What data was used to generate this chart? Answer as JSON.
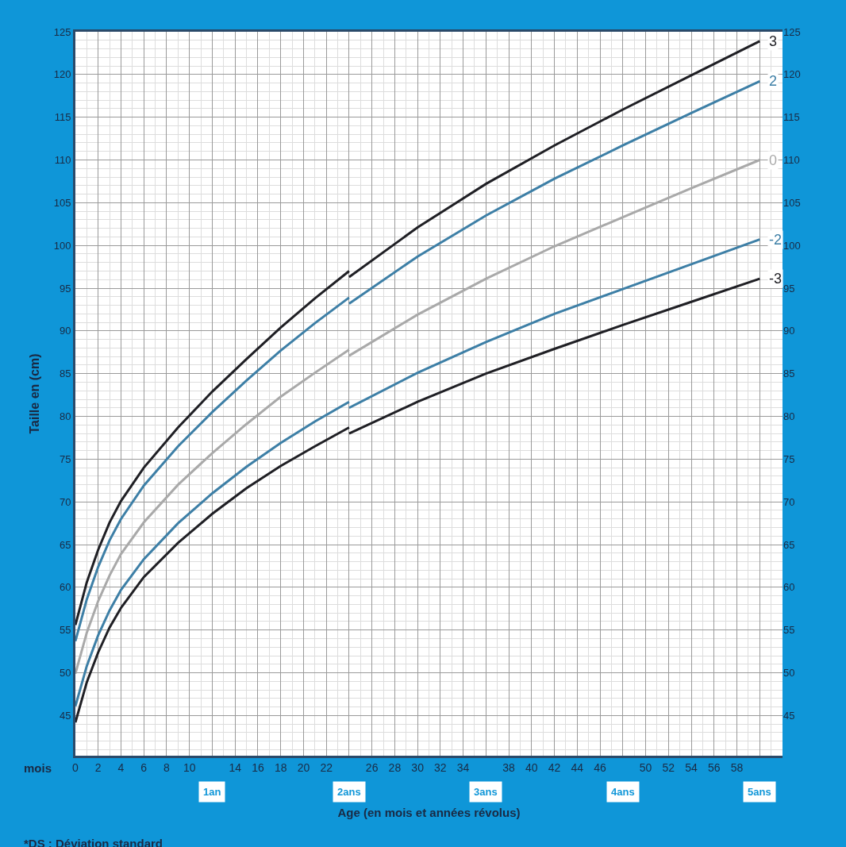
{
  "chart_data": {
    "type": "line",
    "xlabel": "Age (en mois et années révolus)",
    "ylabel": "Taille en (cm)",
    "annotations": [
      "mois",
      "*DS : Déviation standard",
      "1an",
      "2ans",
      "3ans",
      "4ans",
      "5ans"
    ],
    "x": [
      0,
      1,
      2,
      3,
      4,
      6,
      9,
      12,
      15,
      18,
      21,
      24,
      24,
      30,
      36,
      42,
      48,
      54,
      60
    ],
    "series": [
      {
        "name": "3",
        "color": "#1f1f24",
        "values": [
          55.6,
          60.6,
          64.4,
          67.6,
          70.1,
          74.0,
          78.7,
          82.9,
          86.7,
          90.4,
          93.8,
          97.0,
          96.3,
          102.1,
          107.2,
          111.7,
          115.9,
          119.9,
          123.9
        ]
      },
      {
        "name": "2",
        "color": "#3d7fa6",
        "values": [
          53.7,
          58.6,
          62.4,
          65.5,
          68.0,
          71.9,
          76.5,
          80.5,
          84.2,
          87.7,
          90.9,
          93.9,
          93.2,
          98.7,
          103.5,
          107.8,
          111.7,
          115.5,
          119.2
        ]
      },
      {
        "name": "0",
        "color": "#a9a9a9",
        "values": [
          49.9,
          54.7,
          58.4,
          61.4,
          63.9,
          67.6,
          72.0,
          75.7,
          79.1,
          82.3,
          85.1,
          87.8,
          87.1,
          91.9,
          96.1,
          99.9,
          103.3,
          106.7,
          110.0
        ]
      },
      {
        "name": "-2",
        "color": "#3d7fa6",
        "values": [
          46.1,
          50.8,
          54.4,
          57.3,
          59.7,
          63.3,
          67.5,
          71.0,
          74.1,
          76.9,
          79.4,
          81.7,
          81.0,
          85.1,
          88.7,
          92.0,
          94.9,
          97.8,
          100.7
        ]
      },
      {
        "name": "-3",
        "color": "#1f1f24",
        "values": [
          44.2,
          48.9,
          52.4,
          55.3,
          57.6,
          61.2,
          65.2,
          68.6,
          71.6,
          74.2,
          76.5,
          78.7,
          78.0,
          81.7,
          85.0,
          87.9,
          90.7,
          93.4,
          96.1
        ]
      }
    ],
    "xlim": [
      0,
      62
    ],
    "xticks": [
      0,
      2,
      4,
      6,
      8,
      10,
      {
        "value": 12,
        "label": null
      },
      14,
      16,
      18,
      20,
      22,
      {
        "value": 24,
        "label": null
      },
      26,
      28,
      30,
      32,
      34,
      {
        "value": 36,
        "label": null
      },
      38,
      40,
      42,
      44,
      46,
      {
        "value": 48,
        "label": null
      },
      50,
      52,
      54,
      56,
      58,
      {
        "value": 60,
        "label": null
      }
    ],
    "ylim": [
      40.3,
      125
    ],
    "yticks": [
      45,
      50,
      55,
      60,
      65,
      70,
      75,
      80,
      85,
      90,
      95,
      100,
      105,
      110,
      115,
      120,
      125
    ],
    "y2lim": [
      40.3,
      125
    ],
    "y2ticks": [
      45,
      50,
      55,
      60,
      65,
      70,
      75,
      80,
      85,
      90,
      95,
      100,
      105,
      110,
      115,
      120,
      125
    ],
    "grid": true,
    "legend": false,
    "line_style": "solid",
    "marker": "none"
  }
}
